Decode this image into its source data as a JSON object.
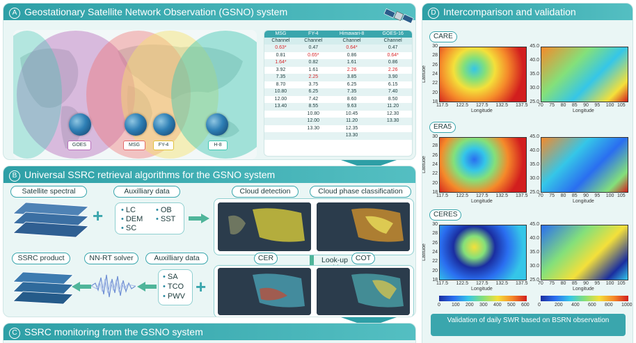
{
  "panel_a": {
    "letter": "A",
    "title": "Geostationary Satellite Network Observation (GSNO) system",
    "satellites": [
      "GOES",
      "MSG",
      "FY-4",
      "H-8"
    ],
    "table": {
      "headers": [
        "MSG",
        "FY-4",
        "Himawari-8",
        "GOES-16"
      ],
      "subheader": "Channel",
      "rows": [
        [
          "0.63*",
          "0.47",
          "0.64*",
          "0.47"
        ],
        [
          "0.81",
          "0.65*",
          "0.86",
          "0.64*"
        ],
        [
          "1.64*",
          "0.82",
          "1.61",
          "0.86"
        ],
        [
          "3.92",
          "1.61",
          "2.26",
          "2.26"
        ],
        [
          "7.35",
          "2.25",
          "3.85",
          "3.90"
        ],
        [
          "8.70",
          "3.75",
          "6.25",
          "6.15"
        ],
        [
          "10.80",
          "6.25",
          "7.35",
          "7.40"
        ],
        [
          "12.00",
          "7.42",
          "8.60",
          "8.50"
        ],
        [
          "13.40",
          "8.55",
          "9.63",
          "11.20"
        ],
        [
          "",
          "10.80",
          "10.45",
          "12.30"
        ],
        [
          "",
          "12.00",
          "11.20",
          "13.30"
        ],
        [
          "",
          "13.30",
          "12.35",
          ""
        ],
        [
          "",
          "",
          "13.30",
          ""
        ]
      ],
      "highlight_color": "#d6272a",
      "highlighted": [
        [
          0,
          0
        ],
        [
          0,
          2
        ],
        [
          1,
          1
        ],
        [
          1,
          3
        ],
        [
          2,
          0
        ],
        [
          3,
          2
        ],
        [
          3,
          3
        ],
        [
          4,
          1
        ]
      ]
    }
  },
  "panel_b": {
    "letter": "B",
    "title": "Universal SSRC retrieval algorithms for the GSNO system",
    "satellite_spectral": "Satellite spectral",
    "aux_top": "Auxilliary data",
    "aux_top_items": [
      "LC",
      "DEM",
      "SC",
      "OB",
      "SST"
    ],
    "cloud_detection": "Cloud detection",
    "cloud_phase": "Cloud phase classification",
    "lookup": "Look-up table",
    "cer": "CER",
    "cot": "COT",
    "ssrc_product": "SSRC product",
    "nn_rt": "NN-RT solver",
    "aux_bottom": "Auxilliary data",
    "aux_bottom_items": [
      "SA",
      "TCO",
      "PWV"
    ]
  },
  "panel_c": {
    "letter": "C",
    "title": "SSRC monitoring from the GSNO system"
  },
  "panel_d": {
    "letter": "D",
    "title": "Intercomparison and validation",
    "rows": [
      "CARE",
      "ERA5",
      "CERES"
    ],
    "left_y_ticks": [
      "30",
      "28",
      "26",
      "24",
      "22",
      "20",
      "18"
    ],
    "left_x_ticks": [
      "117.5",
      "122.5",
      "127.5",
      "132.5",
      "137.5"
    ],
    "right_y_ticks": [
      "45.0",
      "40.0",
      "35.0",
      "30.0",
      "25.0"
    ],
    "right_x_ticks": [
      "70",
      "75",
      "80",
      "85",
      "90",
      "95",
      "100",
      "105"
    ],
    "xlabel": "Longitude",
    "ylabel": "Latitude",
    "colorbar_left_ticks": [
      "0",
      "100",
      "200",
      "300",
      "400",
      "500",
      "600"
    ],
    "colorbar_right_ticks": [
      "0",
      "200",
      "400",
      "600",
      "800",
      "1000"
    ],
    "validation": "Validation of daily SWR based on BSRN observation"
  }
}
